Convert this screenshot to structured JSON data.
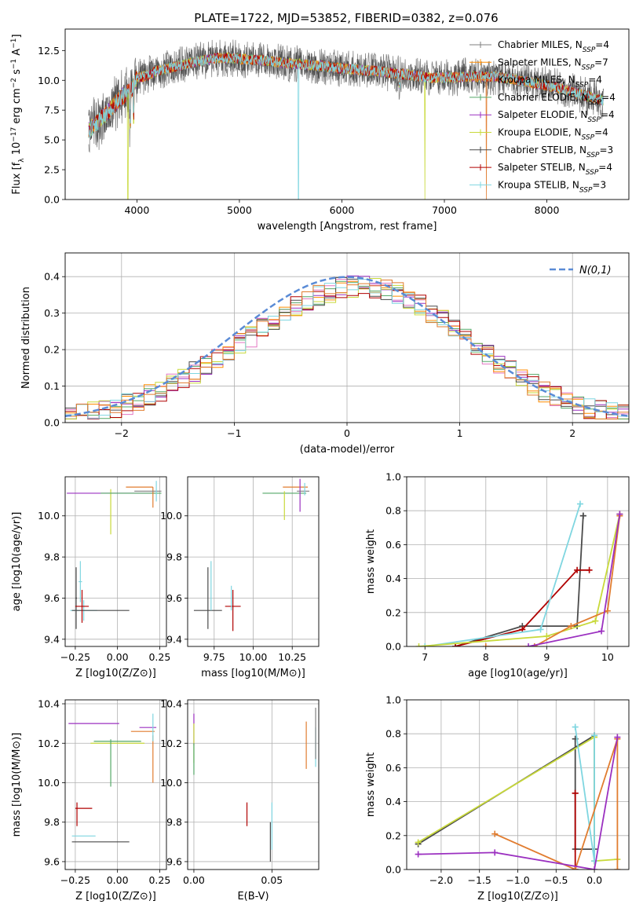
{
  "figure": {
    "title": "PLATE=1722, MJD=53852, FIBERID=0382, z=0.076"
  },
  "colors": {
    "series": [
      "#7f7f7f",
      "#ff8c00",
      "#e17c2f",
      "#55a868",
      "#9b30c0",
      "#c8d93a",
      "#4a4a4a",
      "#b00000",
      "#7fd6e0"
    ],
    "gauss": "#5a8bd6"
  },
  "chart_data": [
    {
      "id": "spectrum",
      "type": "line",
      "title": "PLATE=1722, MJD=53852, FIBERID=0382, z=0.076",
      "xlabel": "wavelength [Angstrom, rest frame]",
      "ylabel": "Flux [f_λ 10^-17 erg cm^-2 s^-1 A^-1]",
      "xlim": [
        3300,
        8800
      ],
      "ylim": [
        0,
        14.3
      ],
      "xticks": [
        4000,
        5000,
        6000,
        7000,
        8000
      ],
      "yticks": [
        0.0,
        2.5,
        5.0,
        7.5,
        10.0,
        12.5
      ],
      "grid": false,
      "legend_position": "top-right",
      "legend": [
        "Chabrier MILES, N_SSP=4",
        "Salpeter MILES, N_SSP=7",
        "Kroupa MILES, N_SSP=4",
        "Chabrier ELODIE, N_SSP=4",
        "Salpeter ELODIE, N_SSP=4",
        "Kroupa ELODIE, N_SSP=4",
        "Chabrier STELIB, N_SSP=3",
        "Salpeter STELIB, N_SSP=4",
        "Kroupa STELIB, N_SSP=3"
      ],
      "continuum": [
        [
          3530,
          5.8
        ],
        [
          3700,
          7.2
        ],
        [
          3850,
          8.6
        ],
        [
          3950,
          9.2
        ],
        [
          4000,
          10.2
        ],
        [
          4100,
          10.4
        ],
        [
          4200,
          10.8
        ],
        [
          4400,
          11.2
        ],
        [
          4600,
          11.6
        ],
        [
          4800,
          11.9
        ],
        [
          5000,
          11.8
        ],
        [
          5200,
          11.7
        ],
        [
          5500,
          11.4
        ],
        [
          5800,
          11.2
        ],
        [
          6000,
          11.0
        ],
        [
          6300,
          10.8
        ],
        [
          6600,
          10.5
        ],
        [
          6900,
          10.2
        ],
        [
          7200,
          10.3
        ],
        [
          7500,
          10.3
        ],
        [
          7800,
          9.9
        ],
        [
          8100,
          9.4
        ],
        [
          8300,
          8.9
        ],
        [
          8550,
          8.3
        ]
      ]
    },
    {
      "id": "residuals",
      "type": "line",
      "xlabel": "(data-model)/error",
      "ylabel": "Normed distribution",
      "xlim": [
        -2.5,
        2.5
      ],
      "ylim": [
        0,
        0.465
      ],
      "xticks": [
        -2,
        -1,
        0,
        1,
        2
      ],
      "yticks": [
        0.0,
        0.1,
        0.2,
        0.3,
        0.4
      ],
      "grid": true,
      "legend_position": "top-right",
      "legend": [
        "N(0,1)"
      ],
      "hist_bins": 50,
      "gaussian_sigma": 1
    },
    {
      "id": "age-vs-Z",
      "type": "scatter",
      "xlabel": "Z [log10(Z/Z⊙)]",
      "ylabel": "age  [log10(age/yr)]",
      "xlim": [
        -0.31,
        0.29
      ],
      "ylim": [
        9.365,
        10.19
      ],
      "xticks": [
        -0.25,
        0.0,
        0.25
      ],
      "yticks": [
        9.4,
        9.6,
        9.8,
        10.0
      ],
      "grid": true,
      "errorbars": [
        {
          "series": 8,
          "x": -0.2,
          "y": 9.54,
          "xerr": 0.08,
          "yerr": 0.05
        },
        {
          "series": 6,
          "x": -0.1,
          "y": 9.54,
          "xerr": 0.17,
          "yerr": 0.0
        },
        {
          "series": 8,
          "x": -0.22,
          "y": 9.68,
          "xerr": 0.01,
          "yerr": 0.1
        },
        {
          "series": 6,
          "x": -0.245,
          "y": 9.6,
          "xerr": 0.005,
          "yerr": 0.15
        },
        {
          "series": 7,
          "x": -0.21,
          "y": 9.56,
          "xerr": 0.04,
          "yerr": 0.08
        },
        {
          "series": 4,
          "x": -0.04,
          "y": 10.11,
          "xerr": 0.26,
          "yerr": 0.0
        },
        {
          "series": 5,
          "x": -0.04,
          "y": 10.02,
          "xerr": 0.0,
          "yerr": 0.11
        },
        {
          "series": 3,
          "x": 0.08,
          "y": 10.11,
          "xerr": 0.18,
          "yerr": 0.0
        },
        {
          "series": 2,
          "x": 0.13,
          "y": 10.14,
          "xerr": 0.08,
          "yerr": 0.0
        },
        {
          "series": 2,
          "x": 0.21,
          "y": 10.09,
          "xerr": 0.0,
          "yerr": 0.05
        },
        {
          "series": 0,
          "x": 0.18,
          "y": 10.12,
          "xerr": 0.08,
          "yerr": 0.0
        },
        {
          "series": 8,
          "x": 0.23,
          "y": 10.12,
          "xerr": 0.0,
          "yerr": 0.05
        }
      ]
    },
    {
      "id": "age-vs-mass",
      "type": "scatter",
      "xlabel": "mass [log10(M/M⊙)]",
      "ylabel": "",
      "xlim": [
        9.58,
        10.42
      ],
      "ylim": [
        9.365,
        10.19
      ],
      "xticks": [
        9.75,
        10.0,
        10.25
      ],
      "yticks": [
        9.4,
        9.6,
        9.8,
        10.0
      ],
      "grid": true,
      "errorbars": [
        {
          "series": 6,
          "x": 9.71,
          "y": 9.54,
          "xerr": 0.09,
          "yerr": 0.0
        },
        {
          "series": 6,
          "x": 9.71,
          "y": 9.6,
          "xerr": 0.0,
          "yerr": 0.15
        },
        {
          "series": 8,
          "x": 9.73,
          "y": 9.66,
          "xerr": 0.0,
          "yerr": 0.12
        },
        {
          "series": 7,
          "x": 9.87,
          "y": 9.56,
          "xerr": 0.05,
          "yerr": 0.0
        },
        {
          "series": 7,
          "x": 9.87,
          "y": 9.54,
          "xerr": 0.0,
          "yerr": 0.1
        },
        {
          "series": 8,
          "x": 9.86,
          "y": 9.6,
          "xerr": 0.0,
          "yerr": 0.06
        },
        {
          "series": 3,
          "x": 10.2,
          "y": 10.11,
          "xerr": 0.14,
          "yerr": 0.0
        },
        {
          "series": 5,
          "x": 10.2,
          "y": 10.05,
          "xerr": 0.0,
          "yerr": 0.07
        },
        {
          "series": 2,
          "x": 10.27,
          "y": 10.14,
          "xerr": 0.08,
          "yerr": 0.0
        },
        {
          "series": 4,
          "x": 10.3,
          "y": 10.1,
          "xerr": 0.0,
          "yerr": 0.08
        },
        {
          "series": 0,
          "x": 10.32,
          "y": 10.12,
          "xerr": 0.04,
          "yerr": 0.0
        },
        {
          "series": 8,
          "x": 10.33,
          "y": 10.13,
          "xerr": 0.0,
          "yerr": 0.03
        }
      ]
    },
    {
      "id": "massweight-vs-age",
      "type": "line",
      "xlabel": "age  [log10(age/yr)]",
      "ylabel": "mass weight",
      "xlim": [
        6.7,
        10.35
      ],
      "ylim": [
        0,
        1.0
      ],
      "xticks": [
        7,
        8,
        9,
        10
      ],
      "yticks": [
        0.0,
        0.2,
        0.4,
        0.6,
        0.8,
        1.0
      ],
      "grid": true,
      "series": [
        {
          "color_index": 6,
          "points": [
            [
              7.5,
              0.0
            ],
            [
              8.6,
              0.12
            ],
            [
              9.5,
              0.12
            ],
            [
              9.6,
              0.77
            ],
            [
              9.6,
              0.77
            ]
          ]
        },
        {
          "color_index": 7,
          "points": [
            [
              7.5,
              0.0
            ],
            [
              8.6,
              0.1
            ],
            [
              9.5,
              0.45
            ],
            [
              9.7,
              0.45
            ]
          ]
        },
        {
          "color_index": 8,
          "points": [
            [
              7.0,
              0.0
            ],
            [
              8.9,
              0.1
            ],
            [
              9.55,
              0.84
            ]
          ]
        },
        {
          "color_index": 5,
          "points": [
            [
              6.9,
              0.0
            ],
            [
              9.0,
              0.06
            ],
            [
              9.8,
              0.15
            ],
            [
              10.2,
              0.78
            ]
          ]
        },
        {
          "color_index": 2,
          "points": [
            [
              8.0,
              0.0
            ],
            [
              8.8,
              0.0
            ],
            [
              9.4,
              0.12
            ],
            [
              10.0,
              0.21
            ],
            [
              10.2,
              0.77
            ]
          ]
        },
        {
          "color_index": 4,
          "points": [
            [
              8.7,
              0.0
            ],
            [
              9.9,
              0.09
            ],
            [
              10.2,
              0.78
            ]
          ]
        }
      ]
    },
    {
      "id": "mass-vs-Z",
      "type": "scatter",
      "xlabel": "Z [log10(Z/Z⊙)]",
      "ylabel": "mass [log10(M/M⊙)]",
      "xlim": [
        -0.31,
        0.29
      ],
      "ylim": [
        9.56,
        10.42
      ],
      "xticks": [
        -0.25,
        0.0,
        0.25
      ],
      "yticks": [
        9.6,
        9.8,
        10.0,
        10.2,
        10.4
      ],
      "grid": true,
      "errorbars": [
        {
          "series": 6,
          "x": -0.1,
          "y": 9.7,
          "xerr": 0.17,
          "yerr": 0.0
        },
        {
          "series": 8,
          "x": -0.2,
          "y": 9.73,
          "xerr": 0.07,
          "yerr": 0.0
        },
        {
          "series": 7,
          "x": -0.2,
          "y": 9.87,
          "xerr": 0.05,
          "yerr": 0.0
        },
        {
          "series": 7,
          "x": -0.24,
          "y": 9.84,
          "xerr": 0.0,
          "yerr": 0.06
        },
        {
          "series": 4,
          "x": -0.14,
          "y": 10.3,
          "xerr": 0.15,
          "yerr": 0.0
        },
        {
          "series": 3,
          "x": 0.0,
          "y": 10.21,
          "xerr": 0.14,
          "yerr": 0.0
        },
        {
          "series": 5,
          "x": 0.0,
          "y": 10.2,
          "xerr": 0.16,
          "yerr": 0.0
        },
        {
          "series": 3,
          "x": -0.04,
          "y": 10.1,
          "xerr": 0.0,
          "yerr": 0.12
        },
        {
          "series": 2,
          "x": 0.15,
          "y": 10.26,
          "xerr": 0.07,
          "yerr": 0.0
        },
        {
          "series": 2,
          "x": 0.21,
          "y": 10.12,
          "xerr": 0.0,
          "yerr": 0.12
        },
        {
          "series": 4,
          "x": 0.18,
          "y": 10.28,
          "xerr": 0.05,
          "yerr": 0.0
        },
        {
          "series": 8,
          "x": 0.21,
          "y": 10.28,
          "xerr": 0.0,
          "yerr": 0.07
        }
      ]
    },
    {
      "id": "mass-vs-EBV",
      "type": "scatter",
      "xlabel": "E(B-V)",
      "ylabel": "",
      "xlim": [
        -0.004,
        0.08
      ],
      "ylim": [
        9.56,
        10.42
      ],
      "xticks": [
        0.0,
        0.05
      ],
      "yticks": [
        9.6,
        9.8,
        10.0,
        10.2,
        10.4
      ],
      "grid": true,
      "errorbars": [
        {
          "series": 4,
          "x": 0.0,
          "y": 10.27,
          "xerr": 0.0,
          "yerr": 0.08
        },
        {
          "series": 5,
          "x": 0.0,
          "y": 10.2,
          "xerr": 0.0,
          "yerr": 0.1
        },
        {
          "series": 3,
          "x": 0.0,
          "y": 10.12,
          "xerr": 0.0,
          "yerr": 0.08
        },
        {
          "series": 7,
          "x": 0.034,
          "y": 9.84,
          "xerr": 0.0,
          "yerr": 0.06
        },
        {
          "series": 6,
          "x": 0.049,
          "y": 9.7,
          "xerr": 0.0,
          "yerr": 0.1
        },
        {
          "series": 8,
          "x": 0.05,
          "y": 9.78,
          "xerr": 0.0,
          "yerr": 0.12
        },
        {
          "series": 2,
          "x": 0.072,
          "y": 10.19,
          "xerr": 0.0,
          "yerr": 0.12
        },
        {
          "series": 8,
          "x": 0.078,
          "y": 10.18,
          "xerr": 0.0,
          "yerr": 0.1
        },
        {
          "series": 0,
          "x": 0.078,
          "y": 10.25,
          "xerr": 0.0,
          "yerr": 0.13
        }
      ]
    },
    {
      "id": "massweight-vs-Z",
      "type": "line",
      "xlabel": "Z [log10(Z/Z⊙)]",
      "ylabel": "mass weight",
      "xlim": [
        -2.45,
        0.45
      ],
      "ylim": [
        0,
        1.0
      ],
      "xticks": [
        -2.0,
        -1.5,
        -1.0,
        -0.5,
        0.0
      ],
      "yticks": [
        0.0,
        0.2,
        0.4,
        0.6,
        0.8,
        1.0
      ],
      "grid": true,
      "series": [
        {
          "color_index": 6,
          "points": [
            [
              -2.3,
              0.15
            ],
            [
              0.0,
              0.79
            ],
            [
              0.0,
              0.12
            ],
            [
              -0.25,
              0.12
            ],
            [
              -0.25,
              0.77
            ]
          ]
        },
        {
          "color_index": 5,
          "points": [
            [
              -2.3,
              0.16
            ],
            [
              0.0,
              0.78
            ],
            [
              0.0,
              0.05
            ],
            [
              0.3,
              0.06
            ]
          ]
        },
        {
          "color_index": 8,
          "points": [
            [
              -0.25,
              0.84
            ],
            [
              0.0,
              0.05
            ],
            [
              0.0,
              0.79
            ]
          ]
        },
        {
          "color_index": 7,
          "points": [
            [
              -0.25,
              0.45
            ],
            [
              -0.25,
              0.0
            ],
            [
              -0.25,
              0.45
            ]
          ]
        },
        {
          "color_index": 2,
          "points": [
            [
              -1.3,
              0.21
            ],
            [
              -0.25,
              0.0
            ],
            [
              0.3,
              0.77
            ],
            [
              0.3,
              0.0
            ]
          ]
        },
        {
          "color_index": 4,
          "points": [
            [
              -2.3,
              0.09
            ],
            [
              -1.3,
              0.1
            ],
            [
              0.0,
              0.0
            ],
            [
              0.3,
              0.78
            ]
          ]
        }
      ]
    }
  ]
}
